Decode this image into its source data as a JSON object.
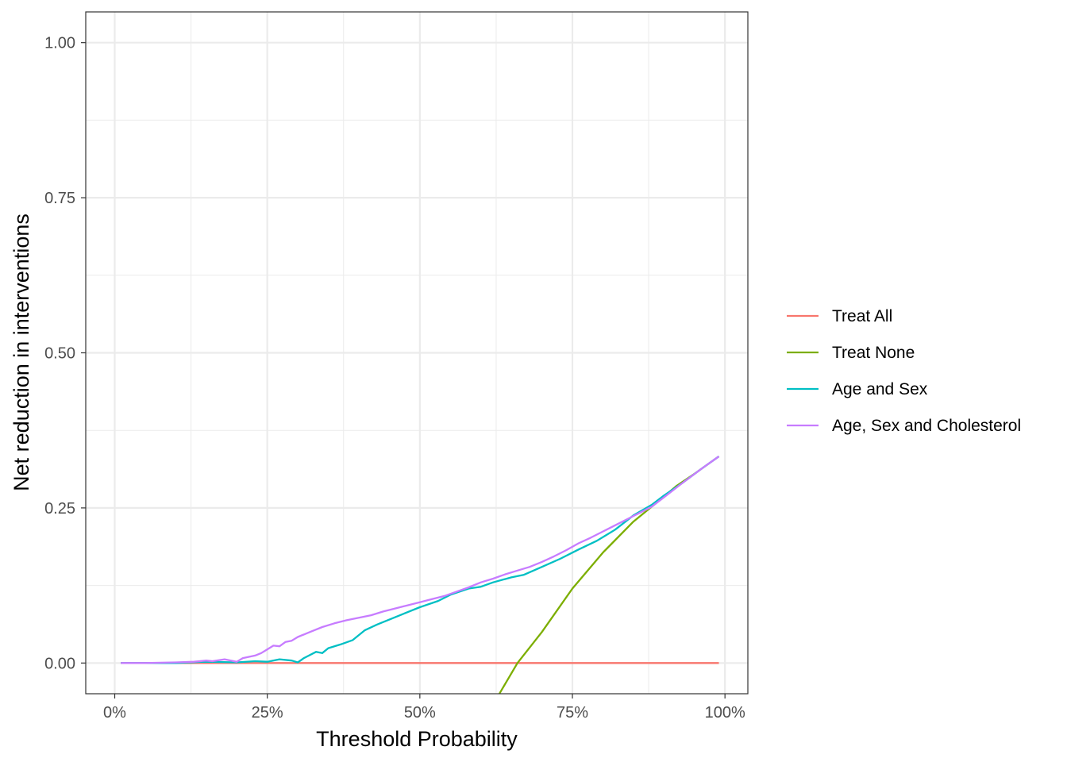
{
  "chart_data": {
    "type": "line",
    "title": "",
    "xlabel": "Threshold Probability",
    "ylabel": "Net reduction in interventions",
    "xlim": [
      -0.0475,
      1.0375
    ],
    "ylim": [
      -0.0495,
      1.0495
    ],
    "x_ticks": [
      0,
      0.25,
      0.5,
      0.75,
      1.0
    ],
    "x_tick_labels": [
      "0%",
      "25%",
      "50%",
      "75%",
      "100%"
    ],
    "y_ticks": [
      0,
      0.25,
      0.5,
      0.75,
      1.0
    ],
    "y_tick_labels": [
      "0.00",
      "0.25",
      "0.50",
      "0.75",
      "1.00"
    ],
    "grid": true,
    "legend_position": "right",
    "series": [
      {
        "name": "Treat All",
        "color": "#F8766D",
        "x": [
          0.01,
          0.99
        ],
        "y": [
          0,
          0
        ]
      },
      {
        "name": "Treat None",
        "color": "#7CAE00",
        "x": [
          0.63,
          0.66,
          0.7,
          0.75,
          0.8,
          0.85,
          0.89,
          0.92,
          0.95,
          0.99
        ],
        "y": [
          -0.05,
          0.0,
          0.05,
          0.12,
          0.178,
          0.228,
          0.26,
          0.285,
          0.305,
          0.333
        ]
      },
      {
        "name": "Age and Sex",
        "color": "#00BFC4",
        "x": [
          0.01,
          0.05,
          0.1,
          0.15,
          0.2,
          0.23,
          0.25,
          0.27,
          0.29,
          0.3,
          0.31,
          0.33,
          0.34,
          0.35,
          0.37,
          0.39,
          0.4,
          0.41,
          0.43,
          0.45,
          0.47,
          0.5,
          0.53,
          0.55,
          0.58,
          0.6,
          0.62,
          0.65,
          0.67,
          0.7,
          0.73,
          0.76,
          0.79,
          0.82,
          0.85,
          0.88,
          0.9,
          0.93,
          0.96,
          0.99
        ],
        "y": [
          0,
          0,
          0,
          0.002,
          0.001,
          0.003,
          0.002,
          0.006,
          0.004,
          0.001,
          0.008,
          0.018,
          0.016,
          0.024,
          0.03,
          0.037,
          0.045,
          0.053,
          0.062,
          0.07,
          0.078,
          0.09,
          0.1,
          0.11,
          0.12,
          0.123,
          0.13,
          0.138,
          0.142,
          0.155,
          0.168,
          0.183,
          0.197,
          0.215,
          0.238,
          0.255,
          0.27,
          0.29,
          0.312,
          0.333
        ]
      },
      {
        "name": "Age, Sex and Cholesterol",
        "color": "#C77CFF",
        "x": [
          0.01,
          0.05,
          0.1,
          0.13,
          0.15,
          0.16,
          0.18,
          0.2,
          0.21,
          0.23,
          0.24,
          0.25,
          0.26,
          0.27,
          0.28,
          0.29,
          0.3,
          0.32,
          0.34,
          0.36,
          0.38,
          0.4,
          0.42,
          0.44,
          0.46,
          0.48,
          0.5,
          0.52,
          0.54,
          0.56,
          0.58,
          0.6,
          0.62,
          0.64,
          0.66,
          0.68,
          0.7,
          0.72,
          0.74,
          0.76,
          0.78,
          0.8,
          0.82,
          0.84,
          0.86,
          0.88,
          0.9,
          0.93,
          0.96,
          0.99
        ],
        "y": [
          0,
          0,
          0.001,
          0.002,
          0.004,
          0.003,
          0.006,
          0.002,
          0.008,
          0.012,
          0.016,
          0.022,
          0.028,
          0.027,
          0.034,
          0.036,
          0.042,
          0.05,
          0.058,
          0.064,
          0.069,
          0.073,
          0.077,
          0.083,
          0.088,
          0.093,
          0.098,
          0.103,
          0.108,
          0.115,
          0.122,
          0.13,
          0.136,
          0.143,
          0.149,
          0.155,
          0.163,
          0.172,
          0.182,
          0.193,
          0.202,
          0.212,
          0.222,
          0.232,
          0.242,
          0.252,
          0.267,
          0.29,
          0.312,
          0.333
        ]
      }
    ]
  }
}
